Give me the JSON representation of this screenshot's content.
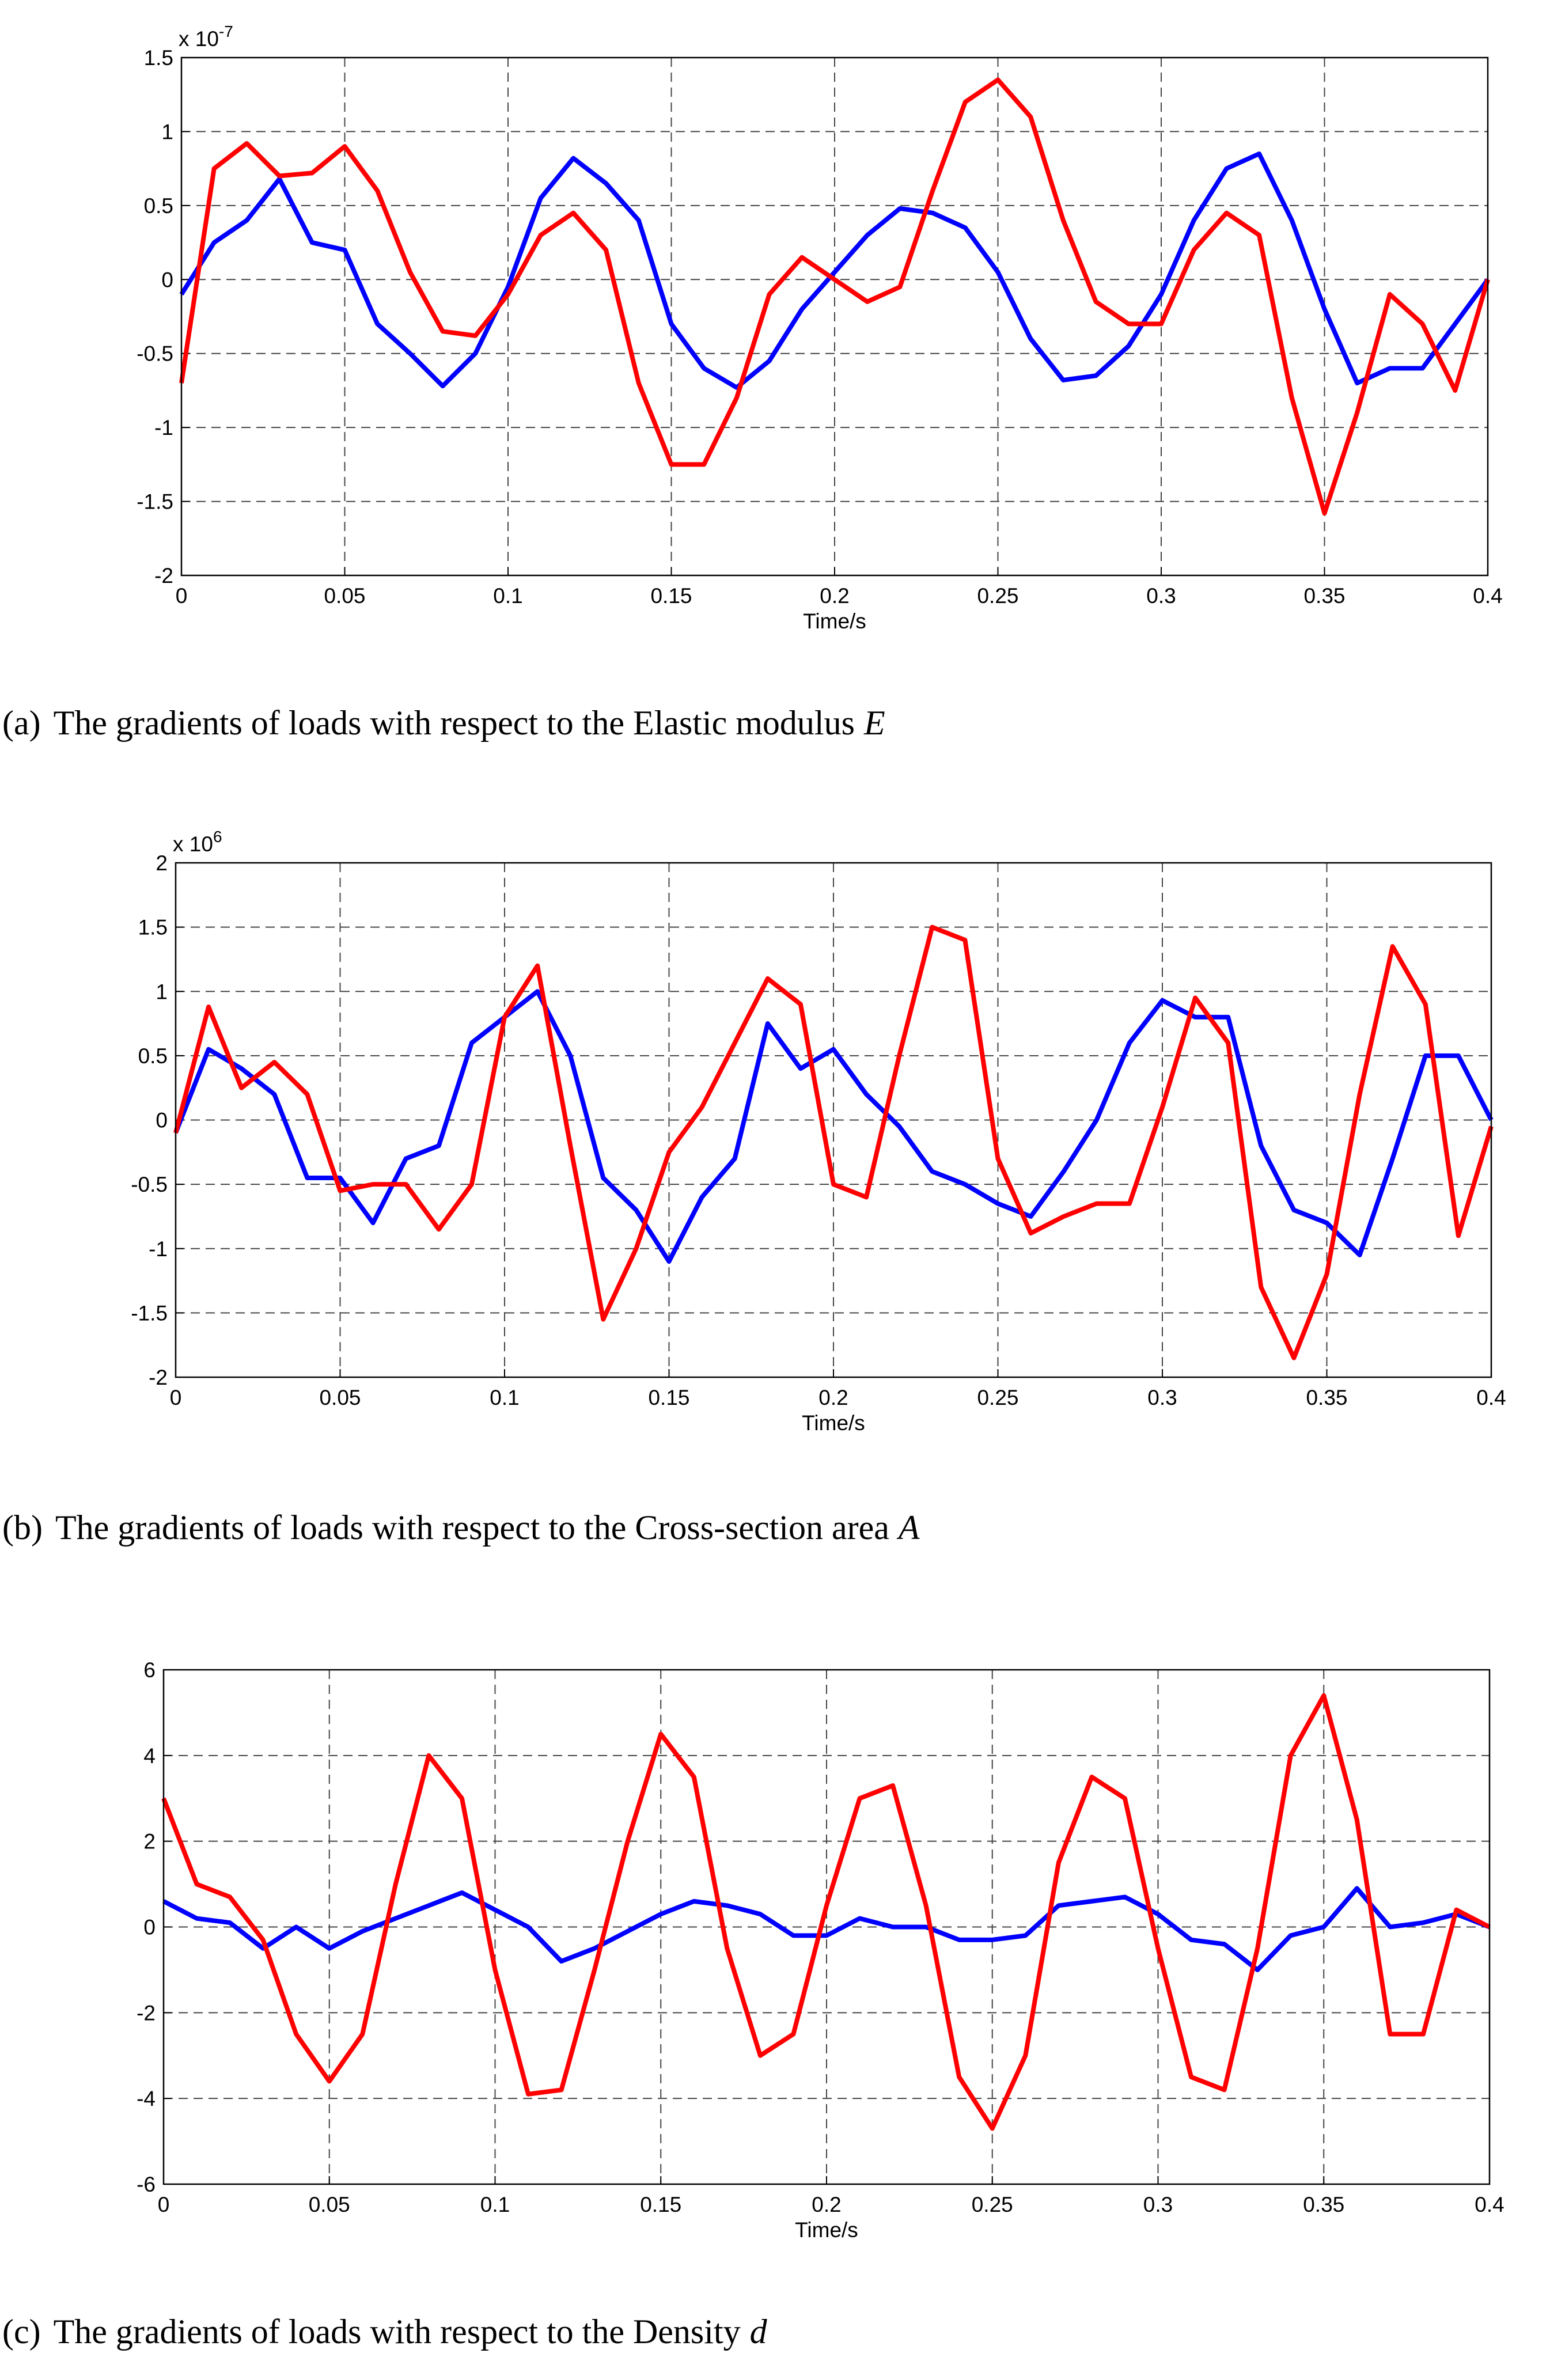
{
  "chart_data": [
    {
      "type": "line",
      "xlabel": "Time/s",
      "exponent_base": "x 10",
      "exponent_power": "-7",
      "caption_label": "(a)",
      "caption_text": "The gradients of loads with respect to the Elastic modulus",
      "caption_symbol": "E",
      "xlim": [
        0,
        0.4
      ],
      "xticks": [
        0,
        0.05,
        0.1,
        0.15,
        0.2,
        0.25,
        0.3,
        0.35,
        0.4
      ],
      "ylim": [
        -2,
        1.5
      ],
      "yticks": [
        -2,
        -1.5,
        -1,
        -0.5,
        0,
        0.5,
        1,
        1.5
      ],
      "grid": true,
      "x": [
        0,
        0.01,
        0.02,
        0.03,
        0.04,
        0.05,
        0.06,
        0.07,
        0.08,
        0.09,
        0.1,
        0.11,
        0.12,
        0.13,
        0.14,
        0.15,
        0.16,
        0.17,
        0.18,
        0.19,
        0.2,
        0.21,
        0.22,
        0.23,
        0.24,
        0.25,
        0.26,
        0.27,
        0.28,
        0.29,
        0.3,
        0.31,
        0.32,
        0.33,
        0.34,
        0.35,
        0.36,
        0.37,
        0.38,
        0.39,
        0.4
      ],
      "series": [
        {
          "color": "#0000ff",
          "values": [
            -0.1,
            0.25,
            0.4,
            0.68,
            0.25,
            0.2,
            -0.3,
            -0.5,
            -0.72,
            -0.5,
            -0.05,
            0.55,
            0.82,
            0.65,
            0.4,
            -0.3,
            -0.6,
            -0.73,
            -0.55,
            -0.2,
            0.05,
            0.3,
            0.48,
            0.45,
            0.35,
            0.05,
            -0.4,
            -0.68,
            -0.65,
            -0.45,
            -0.1,
            0.4,
            0.75,
            0.85,
            0.4,
            -0.2,
            -0.7,
            -0.6,
            -0.6,
            -0.3,
            0
          ]
        },
        {
          "color": "#ff0000",
          "values": [
            -0.7,
            0.75,
            0.92,
            0.7,
            0.72,
            0.9,
            0.6,
            0.05,
            -0.35,
            -0.38,
            -0.1,
            0.3,
            0.45,
            0.2,
            -0.7,
            -1.25,
            -1.25,
            -0.8,
            -0.1,
            0.15,
            0,
            -0.15,
            -0.05,
            0.6,
            1.2,
            1.35,
            1.1,
            0.4,
            -0.15,
            -0.3,
            -0.3,
            0.2,
            0.45,
            0.3,
            -0.8,
            -1.58,
            -0.9,
            -0.1,
            -0.3,
            -0.75,
            0
          ]
        }
      ]
    },
    {
      "type": "line",
      "xlabel": "Time/s",
      "exponent_base": "x 10",
      "exponent_power": "6",
      "caption_label": "(b)",
      "caption_text": "The gradients of loads with respect to the Cross-section area",
      "caption_symbol": "A",
      "xlim": [
        0,
        0.4
      ],
      "xticks": [
        0,
        0.05,
        0.1,
        0.15,
        0.2,
        0.25,
        0.3,
        0.35,
        0.4
      ],
      "ylim": [
        -2,
        2
      ],
      "yticks": [
        -2,
        -1.5,
        -1,
        -0.5,
        0,
        0.5,
        1,
        1.5,
        2
      ],
      "grid": true,
      "x": [
        0,
        0.01,
        0.02,
        0.03,
        0.04,
        0.05,
        0.06,
        0.07,
        0.08,
        0.09,
        0.1,
        0.11,
        0.12,
        0.13,
        0.14,
        0.15,
        0.16,
        0.17,
        0.18,
        0.19,
        0.2,
        0.21,
        0.22,
        0.23,
        0.24,
        0.25,
        0.26,
        0.27,
        0.28,
        0.29,
        0.3,
        0.31,
        0.32,
        0.33,
        0.34,
        0.35,
        0.36,
        0.37,
        0.38,
        0.39,
        0.4
      ],
      "series": [
        {
          "color": "#0000ff",
          "values": [
            -0.1,
            0.55,
            0.4,
            0.2,
            -0.45,
            -0.45,
            -0.8,
            -0.3,
            -0.2,
            0.6,
            0.8,
            1.0,
            0.5,
            -0.45,
            -0.7,
            -1.1,
            -0.6,
            -0.3,
            0.75,
            0.4,
            0.55,
            0.2,
            -0.05,
            -0.4,
            -0.5,
            -0.65,
            -0.75,
            -0.4,
            0,
            0.6,
            0.93,
            0.8,
            0.8,
            -0.2,
            -0.7,
            -0.8,
            -1.05,
            -0.3,
            0.5,
            0.5,
            0
          ]
        },
        {
          "color": "#ff0000",
          "values": [
            -0.1,
            0.88,
            0.25,
            0.45,
            0.2,
            -0.55,
            -0.5,
            -0.5,
            -0.85,
            -0.5,
            0.8,
            1.2,
            -0.2,
            -1.55,
            -1.0,
            -0.25,
            0.1,
            0.6,
            1.1,
            0.9,
            -0.5,
            -0.6,
            0.5,
            1.5,
            1.4,
            -0.3,
            -0.88,
            -0.75,
            -0.65,
            -0.65,
            0.1,
            0.95,
            0.6,
            -1.3,
            -1.85,
            -1.2,
            0.2,
            1.35,
            0.9,
            -0.9,
            -0.05
          ]
        }
      ]
    },
    {
      "type": "line",
      "xlabel": "Time/s",
      "caption_label": "(c)",
      "caption_text": "The gradients of loads with respect to the Density",
      "caption_symbol": "d",
      "xlim": [
        0,
        0.4
      ],
      "xticks": [
        0,
        0.05,
        0.1,
        0.15,
        0.2,
        0.25,
        0.3,
        0.35,
        0.4
      ],
      "ylim": [
        -6,
        6
      ],
      "yticks": [
        -6,
        -4,
        -2,
        0,
        2,
        4,
        6
      ],
      "grid": true,
      "x": [
        0,
        0.01,
        0.02,
        0.03,
        0.04,
        0.05,
        0.06,
        0.07,
        0.08,
        0.09,
        0.1,
        0.11,
        0.12,
        0.13,
        0.14,
        0.15,
        0.16,
        0.17,
        0.18,
        0.19,
        0.2,
        0.21,
        0.22,
        0.23,
        0.24,
        0.25,
        0.26,
        0.27,
        0.28,
        0.29,
        0.3,
        0.31,
        0.32,
        0.33,
        0.34,
        0.35,
        0.36,
        0.37,
        0.38,
        0.39,
        0.4
      ],
      "series": [
        {
          "color": "#0000ff",
          "values": [
            0.6,
            0.2,
            0.1,
            -0.5,
            0,
            -0.5,
            -0.1,
            0.2,
            0.5,
            0.8,
            0.4,
            0,
            -0.8,
            -0.5,
            -0.1,
            0.3,
            0.6,
            0.5,
            0.3,
            -0.2,
            -0.2,
            0.2,
            0,
            0,
            -0.3,
            -0.3,
            -0.2,
            0.5,
            0.6,
            0.7,
            0.3,
            -0.3,
            -0.4,
            -1.0,
            -0.2,
            0,
            0.9,
            0,
            0.1,
            0.3,
            0
          ]
        },
        {
          "color": "#ff0000",
          "values": [
            3,
            1.0,
            0.7,
            -0.3,
            -2.5,
            -3.6,
            -2.5,
            1.0,
            4.0,
            3.0,
            -1.0,
            -3.9,
            -3.8,
            -1.0,
            2.0,
            4.5,
            3.5,
            -0.5,
            -3.0,
            -2.5,
            0.5,
            3.0,
            3.3,
            0.5,
            -3.5,
            -4.7,
            -3.0,
            1.5,
            3.5,
            3.0,
            -0.5,
            -3.5,
            -3.8,
            -0.5,
            4.0,
            5.4,
            2.5,
            -2.5,
            -2.5,
            0.4,
            0
          ]
        }
      ]
    }
  ]
}
